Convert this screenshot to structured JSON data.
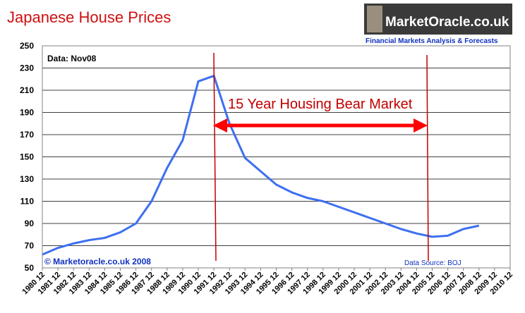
{
  "chart_data": {
    "type": "line",
    "title": "Japanese House Prices",
    "logo": "MarketOracle.co.uk",
    "logo_tagline": "Financial Markets Analysis & Forecasts",
    "annotations": [
      "Data: Nov08",
      "15 Year Housing Bear Market",
      "© Marketoracle.co.uk 2008",
      "Data Source: BOJ"
    ],
    "categories": [
      "1980 12",
      "1981 12",
      "1982 12",
      "1983 12",
      "1984 12",
      "1985 12",
      "1986 12",
      "1987 12",
      "1988 12",
      "1989 12",
      "1990 12",
      "1991 12",
      "1992 12",
      "1993 12",
      "1994 12",
      "1995 12",
      "1996 12",
      "1997 12",
      "1998 12",
      "1999 12",
      "2000 12",
      "2001 12",
      "2002 12",
      "2003 12",
      "2004 12",
      "2005 12",
      "2006 12",
      "2007 12",
      "2008 12",
      "2009 12",
      "2010 12"
    ],
    "values": [
      62,
      68,
      72,
      75,
      77,
      82,
      90,
      110,
      140,
      165,
      218,
      223,
      180,
      149,
      137,
      125,
      118,
      113,
      110,
      105,
      100,
      95,
      90,
      85,
      81,
      78,
      79,
      85,
      88,
      null,
      null
    ],
    "color": "#3d6ff0",
    "ylim": [
      50,
      250
    ],
    "yticks": [
      50,
      70,
      90,
      110,
      130,
      150,
      170,
      190,
      210,
      230,
      250
    ],
    "grid": true
  }
}
